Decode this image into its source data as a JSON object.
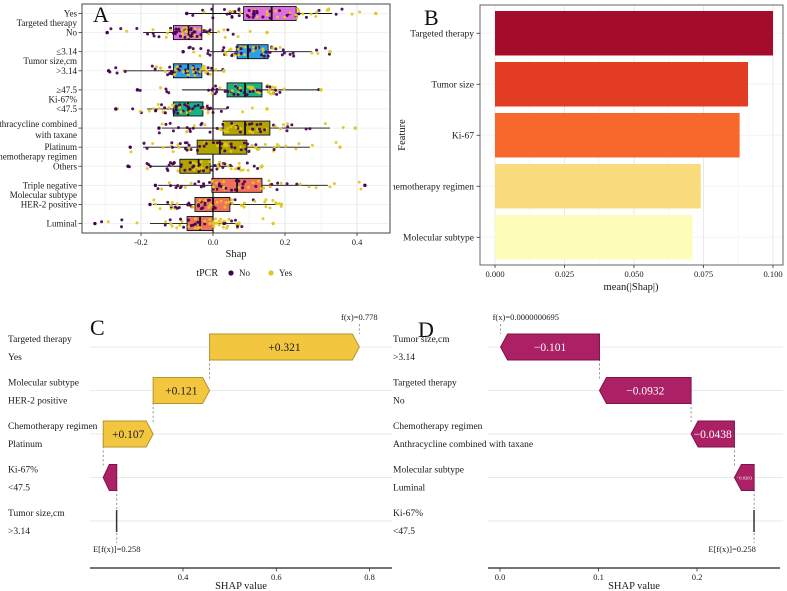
{
  "figure": {
    "background": "#ffffff"
  },
  "chart_data": [
    {
      "panel": "A",
      "letter": "A",
      "type": "boxplot",
      "xlabel": "Shap",
      "x_ticks": [
        {
          "v": -0.2,
          "label": "-0.2"
        },
        {
          "v": 0.0,
          "label": "0.0"
        },
        {
          "v": 0.2,
          "label": "0.2"
        },
        {
          "v": 0.4,
          "label": "0.4"
        }
      ],
      "xlim": [
        -0.364,
        0.492
      ],
      "legend": {
        "title": "tPCR",
        "items": [
          {
            "label": "No",
            "color": "#440154"
          },
          {
            "label": "Yes",
            "color": "#E2C81E"
          }
        ]
      },
      "groups": [
        {
          "label": "Targeted therapy",
          "rows": [
            0,
            1
          ],
          "between": [
            0,
            1
          ]
        },
        {
          "label": "Tumor size,cm",
          "rows": [
            2,
            3
          ],
          "between": [
            2,
            3
          ]
        },
        {
          "label": "Ki-67%",
          "rows": [
            4,
            5
          ],
          "between": [
            4,
            5
          ]
        },
        {
          "label": "Chemotherapy regimen",
          "rows": [
            6,
            7,
            8
          ],
          "between": [
            7,
            8
          ]
        },
        {
          "label": "Molecular subtype",
          "rows": [
            9,
            10,
            11
          ],
          "between": [
            9,
            10
          ]
        }
      ],
      "rows": [
        {
          "level": "Yes",
          "color": "#DE6FDE",
          "lo": -0.073,
          "q1": 0.085,
          "med": 0.163,
          "q3": 0.231,
          "hi": 0.331,
          "pmin": -0.073,
          "pmax": 0.452
        },
        {
          "level": "No",
          "color": "#DE6FDE",
          "lo": -0.194,
          "q1": -0.11,
          "med": -0.068,
          "q3": -0.031,
          "hi": 0.011,
          "pmin": -0.294,
          "pmax": 0.15
        },
        {
          "level": "≤3.14",
          "color": "#2D9FE3",
          "lo": -0.008,
          "q1": 0.067,
          "med": 0.097,
          "q3": 0.153,
          "hi": 0.275,
          "pmin": -0.083,
          "pmax": 0.325
        },
        {
          "level": ">3.14",
          "color": "#2D9FE3",
          "lo": -0.244,
          "q1": -0.11,
          "med": -0.069,
          "q3": -0.031,
          "hi": 0.025,
          "pmin": -0.29,
          "pmax": 0.03
        },
        {
          "level": "≥47.5",
          "color": "#19B383",
          "lo": -0.086,
          "q1": 0.039,
          "med": 0.089,
          "q3": 0.136,
          "hi": 0.297,
          "pmin": -0.21,
          "pmax": 0.3
        },
        {
          "level": "<47.5",
          "color": "#19B383",
          "lo": -0.183,
          "q1": -0.11,
          "med": -0.069,
          "q3": -0.028,
          "hi": 0.039,
          "pmin": -0.27,
          "pmax": 0.15
        },
        {
          "level": [
            "Anthracycline combined",
            "with taxane"
          ],
          "color": "#B0A400",
          "lo": -0.142,
          "q1": 0.028,
          "med": 0.089,
          "q3": 0.158,
          "hi": 0.325,
          "pmin": -0.15,
          "pmax": 0.395
        },
        {
          "level": "Platinum",
          "color": "#B0A400",
          "lo": -0.194,
          "q1": -0.044,
          "med": 0.019,
          "q3": 0.094,
          "hi": 0.269,
          "pmin": -0.23,
          "pmax": 0.353
        },
        {
          "level": "Others",
          "color": "#B0A400",
          "lo": -0.17,
          "q1": -0.092,
          "med": -0.04,
          "q3": -0.008,
          "hi": 0.056,
          "pmin": -0.236,
          "pmax": 0.136
        },
        {
          "level": "Triple negative",
          "color": "#F0705E",
          "lo": -0.153,
          "q1": -0.003,
          "med": 0.067,
          "q3": 0.136,
          "hi": 0.319,
          "pmin": -0.16,
          "pmax": 0.422
        },
        {
          "level": "HER-2 positive",
          "color": "#F0705E",
          "lo": -0.167,
          "q1": -0.05,
          "med": 0.0,
          "q3": 0.047,
          "hi": 0.178,
          "pmin": -0.175,
          "pmax": 0.19
        },
        {
          "level": "Luminal",
          "color": "#F0705E",
          "lo": -0.175,
          "q1": -0.072,
          "med": -0.036,
          "q3": 0.0,
          "hi": 0.075,
          "pmin": -0.328,
          "pmax": 0.167
        }
      ]
    },
    {
      "panel": "B",
      "letter": "B",
      "type": "bar",
      "xlabel": "mean(|Shap|)",
      "ylabel": "Feature",
      "x_ticks": [
        {
          "v": 0,
          "label": "0.000"
        },
        {
          "v": 0.025,
          "label": "0.025"
        },
        {
          "v": 0.05,
          "label": "0.050"
        },
        {
          "v": 0.075,
          "label": "0.075"
        },
        {
          "v": 0.1,
          "label": "0.100"
        }
      ],
      "categories": [
        "Targeted therapy",
        "Tumor size",
        "Ki-67",
        "Chemotherapy regimen",
        "Molecular subtype"
      ],
      "values": [
        0.1,
        0.091,
        0.088,
        0.074,
        0.071
      ],
      "colors": [
        "#A50C2C",
        "#E23D22",
        "#F8682D",
        "#FBDC7C",
        "#FDFCB8"
      ]
    },
    {
      "panel": "C",
      "letter": "C",
      "type": "waterfall",
      "xlabel": "SHAP value",
      "x_ticks": [
        {
          "v": 0.4,
          "label": "0.4"
        },
        {
          "v": 0.6,
          "label": "0.6"
        },
        {
          "v": 0.8,
          "label": "0.8"
        }
      ],
      "fx": 0.778,
      "fx_label": "f(x)=0.778",
      "ef": 0.258,
      "ef_label": "E[f(x)]=0.258",
      "colors": {
        "positive": "#F2C63F",
        "positive_stroke": "#B8922A",
        "negative": "#AC2166",
        "negative_stroke": "#7D1348"
      },
      "rows": [
        {
          "feature": "Targeted therapy",
          "level": "Yes",
          "start": 0.457,
          "end": 0.778,
          "label": "+0.321"
        },
        {
          "feature": "Molecular subtype",
          "level": "HER-2 positive",
          "start": 0.336,
          "end": 0.457,
          "label": "+0.121"
        },
        {
          "feature": "Chemotherapy regimen",
          "level": "Platinum",
          "start": 0.229,
          "end": 0.336,
          "label": "+0.107"
        },
        {
          "feature": "Ki-67%",
          "level": "<47.5",
          "start": 0.258,
          "end": 0.229,
          "label": ""
        },
        {
          "feature": "Tumor size,cm",
          "level": ">3.14",
          "start": 0.258,
          "end": 0.2574,
          "label": ""
        }
      ]
    },
    {
      "panel": "D",
      "letter": "D",
      "type": "waterfall",
      "xlabel": "SHAP value",
      "x_ticks": [
        {
          "v": 0.0,
          "label": "0.0"
        },
        {
          "v": 0.1,
          "label": "0.1"
        },
        {
          "v": 0.2,
          "label": "0.2"
        }
      ],
      "fx": 6.95e-08,
      "fx_label": "f(x)=0.0000000695",
      "ef": 0.258,
      "ef_label": "E[f(x)]=0.258",
      "colors": {
        "positive": "#F2C63F",
        "positive_stroke": "#B8922A",
        "negative": "#AC2166",
        "negative_stroke": "#7D1348"
      },
      "rows": [
        {
          "feature": "Tumor size,cm",
          "level": ">3.14",
          "start": 0.101,
          "end": 0.0006,
          "label": "−0.101"
        },
        {
          "feature": "Targeted therapy",
          "level": "No",
          "start": 0.194,
          "end": 0.101,
          "label": "−0.0932"
        },
        {
          "feature": "Chemotherapy regimen",
          "level": "Anthracycline combined with taxane",
          "start": 0.238,
          "end": 0.194,
          "label": "−0.0438"
        },
        {
          "feature": "Molecular subtype",
          "level": "Luminal",
          "start": 0.258,
          "end": 0.238,
          "label": "−0.0203",
          "small_label": true
        },
        {
          "feature": "Ki-67%",
          "level": "<47.5",
          "start": 0.258,
          "end": 0.2578,
          "label": ""
        }
      ]
    }
  ]
}
